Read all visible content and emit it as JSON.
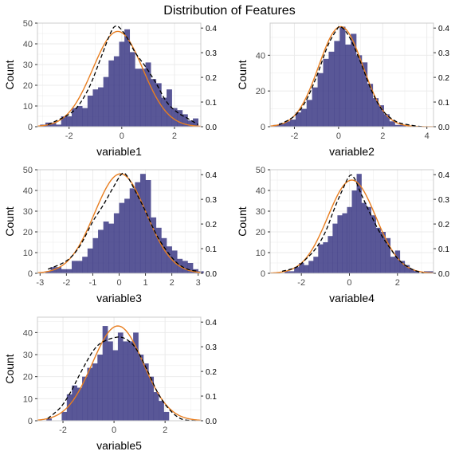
{
  "figure_title": "Distribution of Features",
  "colors": {
    "bar": "#3c3a85",
    "normal_curve": "#e87e20",
    "density_curve": "#000000",
    "grid": "#ebebeb",
    "panel_border": "#cccccc"
  },
  "chart_data": [
    {
      "type": "bar",
      "xlabel": "variable1",
      "ylabel": "Count",
      "x_range": [
        -3.2,
        3.0
      ],
      "xticks": [
        -2,
        0,
        2
      ],
      "ylim": [
        0,
        50
      ],
      "yticks": [
        0,
        10,
        20,
        30,
        40,
        50
      ],
      "right_axis_ticks": [
        0.0,
        0.1,
        0.2,
        0.3,
        0.4
      ],
      "right_axis_range": [
        0,
        0.42
      ],
      "bin_start": -3.1,
      "bin_width": 0.2,
      "counts": [
        1,
        2,
        2,
        1,
        5,
        5,
        9,
        10,
        9,
        15,
        18,
        19,
        24,
        32,
        34,
        41,
        47,
        36,
        28,
        28,
        31,
        23,
        21,
        14,
        18,
        9,
        8,
        6,
        3,
        4
      ],
      "normal_curve": {
        "mean": -0.15,
        "sd": 0.95,
        "peak_count": 46
      },
      "density_curve": [
        [
          -2.8,
          1
        ],
        [
          -2.0,
          6
        ],
        [
          -1.6,
          11
        ],
        [
          -1.2,
          20
        ],
        [
          -0.8,
          33
        ],
        [
          -0.5,
          43
        ],
        [
          -0.3,
          48
        ],
        [
          -0.1,
          48
        ],
        [
          0.2,
          43
        ],
        [
          0.5,
          36
        ],
        [
          0.9,
          29
        ],
        [
          1.3,
          21
        ],
        [
          1.7,
          12
        ],
        [
          2.1,
          7
        ],
        [
          2.5,
          4
        ],
        [
          2.9,
          1
        ]
      ]
    },
    {
      "type": "bar",
      "xlabel": "variable2",
      "ylabel": "Count",
      "x_range": [
        -3.1,
        4.3
      ],
      "xticks": [
        -2,
        0,
        2,
        4
      ],
      "ylim": [
        0,
        58
      ],
      "yticks": [
        0,
        20,
        40
      ],
      "right_axis_ticks": [
        0.0,
        0.1,
        0.2,
        0.3,
        0.4
      ],
      "right_axis_range": [
        0,
        0.42
      ],
      "bin_start": -2.95,
      "bin_width": 0.25,
      "counts": [
        1,
        2,
        3,
        4,
        8,
        10,
        15,
        22,
        30,
        38,
        42,
        48,
        56,
        46,
        52,
        40,
        36,
        24,
        16,
        12,
        7,
        3,
        1,
        1,
        0,
        0
      ],
      "normal_curve": {
        "mean": 0.1,
        "sd": 1.0,
        "peak_count": 56
      },
      "density_curve": [
        [
          -2.7,
          1
        ],
        [
          -2.0,
          6
        ],
        [
          -1.5,
          14
        ],
        [
          -1.0,
          28
        ],
        [
          -0.5,
          45
        ],
        [
          -0.1,
          54
        ],
        [
          0.1,
          56
        ],
        [
          0.5,
          50
        ],
        [
          1.0,
          36
        ],
        [
          1.5,
          20
        ],
        [
          2.0,
          9
        ],
        [
          2.6,
          3
        ],
        [
          3.2,
          1
        ],
        [
          3.8,
          0
        ]
      ]
    },
    {
      "type": "bar",
      "xlabel": "variable3",
      "ylabel": "Count",
      "x_range": [
        -3.1,
        3.1
      ],
      "xticks": [
        -3,
        -2,
        -1,
        0,
        1,
        2,
        3
      ],
      "ylim": [
        0,
        50
      ],
      "yticks": [
        0,
        10,
        20,
        30,
        40,
        50
      ],
      "right_axis_ticks": [
        0.0,
        0.1,
        0.2,
        0.3,
        0.4
      ],
      "right_axis_range": [
        0,
        0.42
      ],
      "bin_start": -2.8,
      "bin_width": 0.2,
      "counts": [
        1,
        3,
        3,
        2,
        2,
        6,
        6,
        8,
        12,
        17,
        21,
        25,
        24,
        29,
        34,
        36,
        41,
        44,
        48,
        45,
        27,
        22,
        17,
        13,
        11,
        7,
        6,
        5,
        2,
        1
      ],
      "normal_curve": {
        "mean": 0.05,
        "sd": 0.98,
        "peak_count": 48
      },
      "density_curve": [
        [
          -2.7,
          2
        ],
        [
          -2.0,
          6
        ],
        [
          -1.5,
          13
        ],
        [
          -1.0,
          25
        ],
        [
          -0.6,
          33
        ],
        [
          -0.2,
          42
        ],
        [
          0.1,
          48
        ],
        [
          0.3,
          47
        ],
        [
          0.6,
          40
        ],
        [
          1.0,
          30
        ],
        [
          1.4,
          19
        ],
        [
          1.8,
          11
        ],
        [
          2.2,
          5
        ],
        [
          2.6,
          2
        ],
        [
          3.0,
          1
        ]
      ]
    },
    {
      "type": "bar",
      "xlabel": "variable4",
      "ylabel": "Count",
      "x_range": [
        -3.3,
        3.5
      ],
      "xticks": [
        -2,
        0,
        2
      ],
      "ylim": [
        0,
        50
      ],
      "yticks": [
        0,
        10,
        20,
        30,
        40,
        50
      ],
      "right_axis_ticks": [
        0.0,
        0.1,
        0.2,
        0.3,
        0.4
      ],
      "right_axis_range": [
        0,
        0.42
      ],
      "bin_start": -3.1,
      "bin_width": 0.2,
      "counts": [
        0,
        0,
        1,
        1,
        3,
        5,
        4,
        6,
        8,
        14,
        15,
        18,
        24,
        28,
        29,
        32,
        40,
        48,
        34,
        32,
        28,
        22,
        20,
        17,
        8,
        11,
        6,
        4,
        2,
        1,
        0,
        1,
        1
      ],
      "normal_curve": {
        "mean": 0.1,
        "sd": 1.0,
        "peak_count": 45
      },
      "density_curve": [
        [
          -2.8,
          1
        ],
        [
          -2.2,
          3
        ],
        [
          -1.8,
          7
        ],
        [
          -1.4,
          12
        ],
        [
          -1.0,
          20
        ],
        [
          -0.6,
          32
        ],
        [
          -0.3,
          40
        ],
        [
          0.0,
          47
        ],
        [
          0.2,
          46
        ],
        [
          0.5,
          38
        ],
        [
          0.9,
          28
        ],
        [
          1.3,
          19
        ],
        [
          1.7,
          12
        ],
        [
          2.1,
          6
        ],
        [
          2.6,
          2
        ],
        [
          3.1,
          0
        ]
      ]
    },
    {
      "type": "bar",
      "xlabel": "variable5",
      "ylabel": "Count",
      "x_range": [
        -3.0,
        3.4
      ],
      "xticks": [
        -2,
        0,
        2
      ],
      "ylim": [
        0,
        47
      ],
      "yticks": [
        0,
        10,
        20,
        30,
        40
      ],
      "right_axis_ticks": [
        0.0,
        0.1,
        0.2,
        0.3,
        0.4
      ],
      "right_axis_range": [
        0,
        0.42
      ],
      "bin_start": -2.65,
      "bin_width": 0.2,
      "counts": [
        1,
        0,
        0,
        4,
        12,
        16,
        15,
        20,
        24,
        26,
        30,
        43,
        36,
        32,
        40,
        36,
        36,
        40,
        30,
        26,
        20,
        13,
        9,
        4,
        0
      ],
      "normal_curve": {
        "mean": 0.15,
        "sd": 1.0,
        "peak_count": 43
      },
      "density_curve": [
        [
          -2.6,
          1
        ],
        [
          -2.1,
          6
        ],
        [
          -1.7,
          13
        ],
        [
          -1.3,
          22
        ],
        [
          -0.8,
          32
        ],
        [
          -0.4,
          36
        ],
        [
          0.2,
          38
        ],
        [
          0.6,
          36
        ],
        [
          0.9,
          32
        ],
        [
          1.3,
          23
        ],
        [
          1.7,
          13
        ],
        [
          2.1,
          6
        ],
        [
          2.6,
          1
        ],
        [
          3.2,
          0
        ]
      ]
    }
  ]
}
